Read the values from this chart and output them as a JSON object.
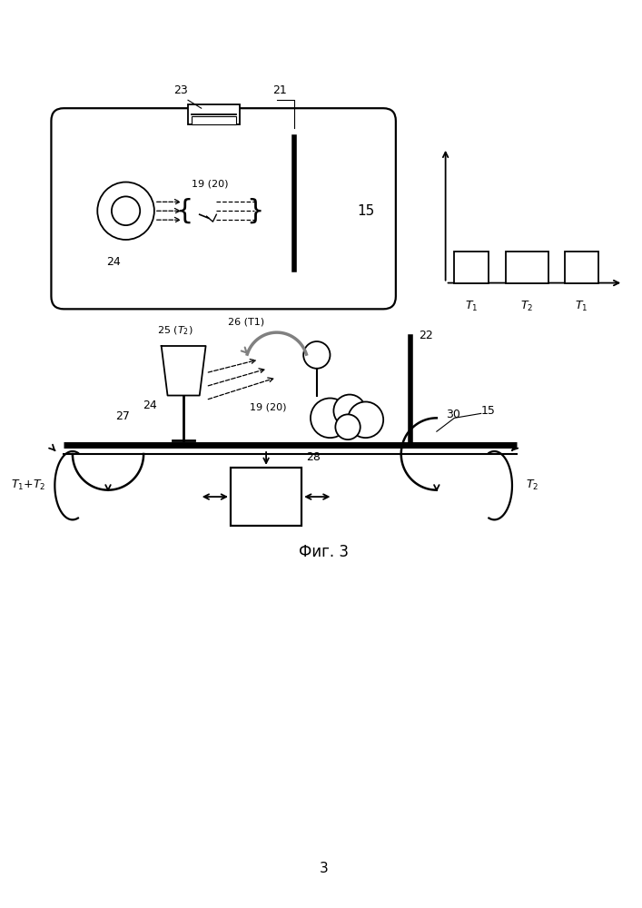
{
  "fig_caption": "Фиг. 3",
  "page_number": "3",
  "background_color": "#ffffff",
  "line_color": "#000000"
}
